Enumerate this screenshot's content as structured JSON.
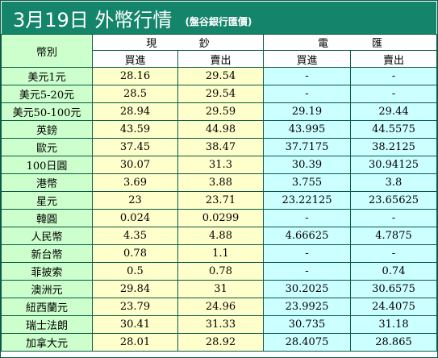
{
  "header": {
    "title": "3月19日 外幣行情",
    "subtitle": "(盤谷銀行匯價)"
  },
  "table": {
    "currency_header": "幣別",
    "cash_group": [
      "現",
      "鈔"
    ],
    "tt_group": [
      "電",
      "匯"
    ],
    "cash_buy": "買進",
    "cash_sell": "賣出",
    "tt_buy": "買進",
    "tt_sell": "賣出",
    "rows": [
      {
        "name": "美元1元",
        "cash_buy": "28.16",
        "cash_sell": "29.54",
        "tt_buy": "-",
        "tt_sell": "-"
      },
      {
        "name": "美元5-20元",
        "cash_buy": "28.5",
        "cash_sell": "29.54",
        "tt_buy": "-",
        "tt_sell": "-"
      },
      {
        "name": "美元50-100元",
        "cash_buy": "28.94",
        "cash_sell": "29.59",
        "tt_buy": "29.19",
        "tt_sell": "29.44"
      },
      {
        "name": "英鎊",
        "cash_buy": "43.59",
        "cash_sell": "44.98",
        "tt_buy": "43.995",
        "tt_sell": "44.5575"
      },
      {
        "name": "歐元",
        "cash_buy": "37.45",
        "cash_sell": "38.47",
        "tt_buy": "37.7175",
        "tt_sell": "38.2125"
      },
      {
        "name": "100日圓",
        "cash_buy": "30.07",
        "cash_sell": "31.3",
        "tt_buy": "30.39",
        "tt_sell": "30.94125"
      },
      {
        "name": "港幣",
        "cash_buy": "3.69",
        "cash_sell": "3.88",
        "tt_buy": "3.755",
        "tt_sell": "3.8"
      },
      {
        "name": "星元",
        "cash_buy": "23",
        "cash_sell": "23.71",
        "tt_buy": "23.22125",
        "tt_sell": "23.65625"
      },
      {
        "name": "韓圓",
        "cash_buy": "0.024",
        "cash_sell": "0.0299",
        "tt_buy": "-",
        "tt_sell": "-"
      },
      {
        "name": "人民幣",
        "cash_buy": "4.35",
        "cash_sell": "4.88",
        "tt_buy": "4.66625",
        "tt_sell": "4.7875"
      },
      {
        "name": "新台幣",
        "cash_buy": "0.78",
        "cash_sell": "1.1",
        "tt_buy": "-",
        "tt_sell": "-"
      },
      {
        "name": "菲披索",
        "cash_buy": "0.5",
        "cash_sell": "0.78",
        "tt_buy": "-",
        "tt_sell": "0.74"
      },
      {
        "name": "澳洲元",
        "cash_buy": "29.84",
        "cash_sell": "31",
        "tt_buy": "30.2025",
        "tt_sell": "30.6575"
      },
      {
        "name": "紐西蘭元",
        "cash_buy": "23.79",
        "cash_sell": "24.96",
        "tt_buy": "23.9925",
        "tt_sell": "24.4075"
      },
      {
        "name": "瑞士法朗",
        "cash_buy": "30.41",
        "cash_sell": "31.33",
        "tt_buy": "30.735",
        "tt_sell": "31.18"
      },
      {
        "name": "加拿大元",
        "cash_buy": "28.01",
        "cash_sell": "28.92",
        "tt_buy": "28.4075",
        "tt_sell": "28.865"
      }
    ]
  },
  "colors": {
    "title_bg": "#14846b",
    "title_text": "#ffffff",
    "name_col_bg": "#ccffcc",
    "cash_bg": "#ffffcc",
    "tt_bg": "#ccffff",
    "border": "#0a5a45"
  }
}
